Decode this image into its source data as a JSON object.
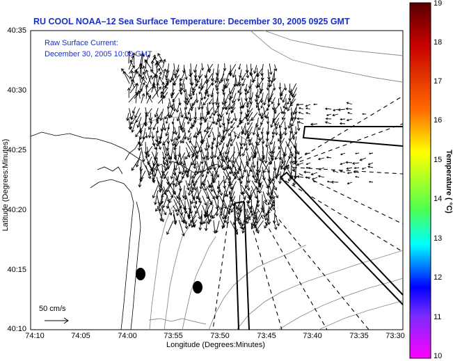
{
  "title": "RU COOL   NOAA–12  Sea Surface Temperature:  December 30, 2005 0925 GMT",
  "legend": {
    "line1": "Raw Surface Current:",
    "line2": "December 30, 2005 10:00 GMT"
  },
  "axes": {
    "xlabel": "Longitude (Degrees:Minutes)",
    "ylabel": "Latitude (Degrees:Minutes)",
    "x_ticks": [
      "74:10",
      "74:05",
      "74:00",
      "73:55",
      "73:50",
      "73:45",
      "73:40",
      "73:35",
      "73:30"
    ],
    "y_ticks": [
      "40:35",
      "40:30",
      "40:25",
      "40:20",
      "40:15",
      "40:10"
    ]
  },
  "scale": {
    "label": "50 cm/s"
  },
  "colorbar": {
    "title": "Temperature ( °C)",
    "ticks": [
      "19",
      "18",
      "17",
      "16",
      "15",
      "14",
      "13",
      "12",
      "11",
      "10"
    ],
    "colors": {
      "top": "#5a0000",
      "red": "#c80000",
      "orange": "#ff6a00",
      "yellow": "#ffff00",
      "green": "#50ff50",
      "cyan": "#00ffff",
      "blue": "#0000ff",
      "violet": "#7a2cff",
      "bottom": "#ff00ff"
    }
  }
}
